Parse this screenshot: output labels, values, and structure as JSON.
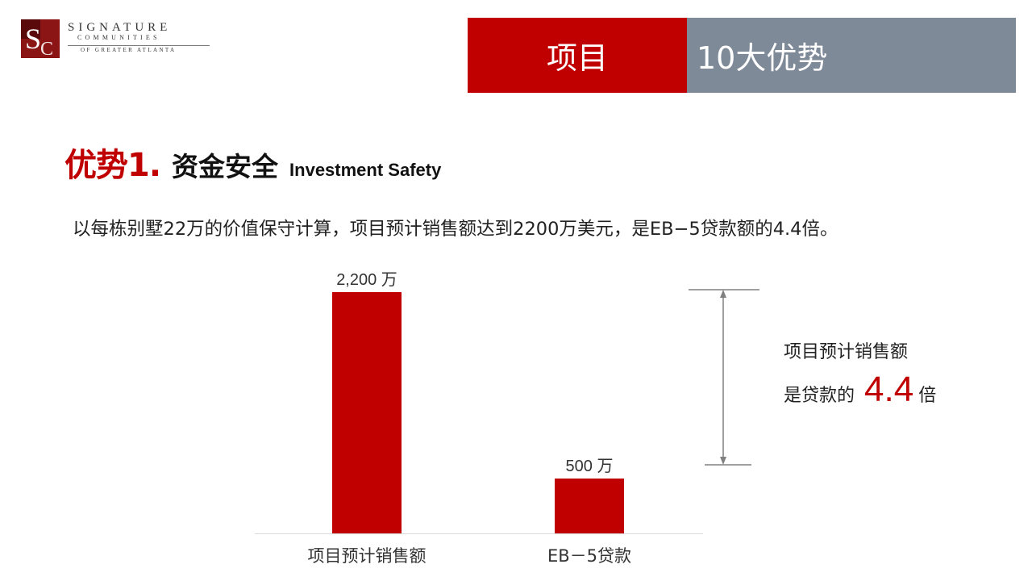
{
  "logo": {
    "line1": "SIGNATURE",
    "line2": "COMMUNITIES",
    "line3": "OF GREATER ATLANTA"
  },
  "header": {
    "left_label": "项目",
    "right_label": "10大优势"
  },
  "heading": {
    "number": "优势1.",
    "title_cn": "资金安全",
    "title_en": "Investment Safety"
  },
  "description": "以每栋别墅22万的价值保守计算，项目预计销售额达到2200万美元，是EB−5贷款额的4.4倍。",
  "chart_data": {
    "type": "bar",
    "categories": [
      "项目预计销售额",
      "EB－5贷款"
    ],
    "values": [
      2200,
      500
    ],
    "value_labels": [
      "2,200  万",
      "500  万"
    ],
    "ylim": [
      0,
      2200
    ],
    "grid": false,
    "legend": "none",
    "bar_color": "#c00000"
  },
  "annotation": {
    "line1": "项目预计销售额",
    "line2_prefix": "是贷款的",
    "ratio": "4.4",
    "line2_suffix": "倍"
  },
  "colors": {
    "accent_red": "#c00000",
    "header_grey": "#7f8a99"
  }
}
